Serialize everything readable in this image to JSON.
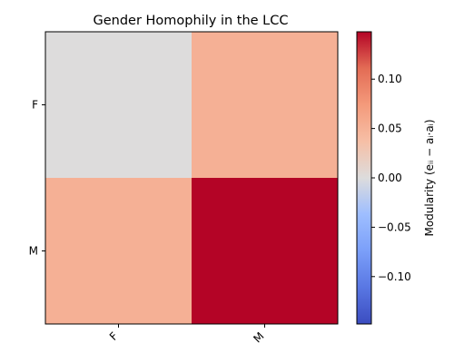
{
  "chart_data": {
    "type": "heatmap",
    "title": "Gender Homophily in the LCC",
    "rows": [
      "F",
      "M"
    ],
    "cols": [
      "F",
      "M"
    ],
    "values": [
      [
        0.0,
        0.052
      ],
      [
        0.052,
        0.148
      ]
    ],
    "colormap": "coolwarm",
    "vmin": -0.148,
    "vmax": 0.148,
    "colorbar": {
      "label": "Modularity (eᵢᵢ − aᵢ·aᵢ)",
      "ticks": [
        -0.1,
        -0.05,
        0.0,
        0.05,
        0.1
      ],
      "tick_labels": [
        "−0.10",
        "−0.05",
        "0.00",
        "0.05",
        "0.10"
      ]
    }
  }
}
